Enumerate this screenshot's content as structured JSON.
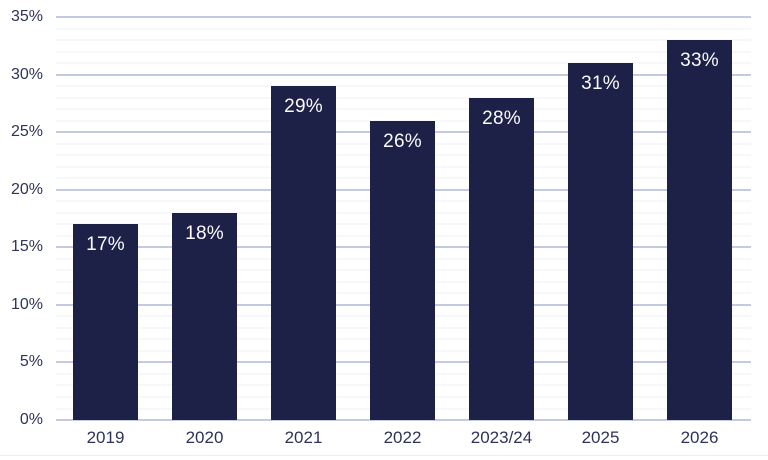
{
  "chart_data": {
    "type": "bar",
    "categories": [
      "2019",
      "2020",
      "2021",
      "2022",
      "2023/24",
      "2025",
      "2026"
    ],
    "values": [
      17,
      18,
      29,
      26,
      28,
      31,
      33
    ],
    "value_labels": [
      "17%",
      "18%",
      "29%",
      "26%",
      "28%",
      "31%",
      "33%"
    ],
    "title": "",
    "xlabel": "",
    "ylabel": "",
    "ylim": [
      0,
      35
    ],
    "y_tick_step": 5,
    "y_minor_step": 1,
    "y_tick_labels": [
      "0%",
      "5%",
      "10%",
      "15%",
      "20%",
      "25%",
      "30%",
      "35%"
    ],
    "grid": true,
    "legend_position": "none",
    "colors": {
      "bar": "#1d2147",
      "bar_label": "#fcfcfd",
      "axis_label": "#2e3359",
      "gridline_major": "#c3cbe0",
      "gridline_minor": "#eff0f6",
      "background": "#ffffff"
    }
  }
}
